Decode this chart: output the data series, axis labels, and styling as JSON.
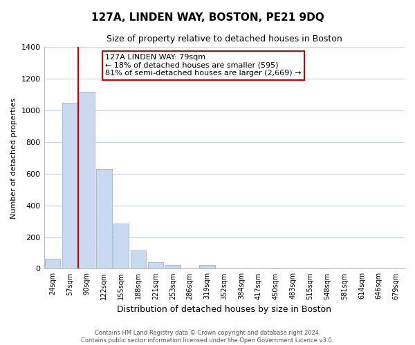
{
  "title": "127A, LINDEN WAY, BOSTON, PE21 9DQ",
  "subtitle": "Size of property relative to detached houses in Boston",
  "xlabel": "Distribution of detached houses by size in Boston",
  "ylabel": "Number of detached properties",
  "bar_labels": [
    "24sqm",
    "57sqm",
    "90sqm",
    "122sqm",
    "155sqm",
    "188sqm",
    "221sqm",
    "253sqm",
    "286sqm",
    "319sqm",
    "352sqm",
    "384sqm",
    "417sqm",
    "450sqm",
    "483sqm",
    "515sqm",
    "548sqm",
    "581sqm",
    "614sqm",
    "646sqm",
    "679sqm"
  ],
  "bar_values": [
    65,
    1050,
    1120,
    630,
    285,
    115,
    42,
    22,
    0,
    22,
    0,
    0,
    0,
    0,
    0,
    0,
    0,
    0,
    0,
    0,
    0
  ],
  "bar_color": "#c8d9f0",
  "bar_edge_color": "#9ab4d8",
  "vline_color": "#cc0000",
  "vline_x_idx": 1.5,
  "ylim": [
    0,
    1400
  ],
  "yticks": [
    0,
    200,
    400,
    600,
    800,
    1000,
    1200,
    1400
  ],
  "annotation_title": "127A LINDEN WAY: 79sqm",
  "annotation_line1": "← 18% of detached houses are smaller (595)",
  "annotation_line2": "81% of semi-detached houses are larger (2,669) →",
  "footer1": "Contains HM Land Registry data © Crown copyright and database right 2024.",
  "footer2": "Contains public sector information licensed under the Open Government Licence v3.0.",
  "background_color": "#ffffff",
  "grid_color": "#c8d4e8",
  "title_fontsize": 11,
  "subtitle_fontsize": 9,
  "ylabel_fontsize": 8,
  "xlabel_fontsize": 9
}
